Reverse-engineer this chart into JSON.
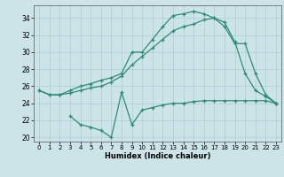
{
  "xlabel": "Humidex (Indice chaleur)",
  "xlim": [
    -0.5,
    23.5
  ],
  "ylim": [
    19.5,
    35.5
  ],
  "xticks": [
    0,
    1,
    2,
    3,
    4,
    5,
    6,
    7,
    8,
    9,
    10,
    11,
    12,
    13,
    14,
    15,
    16,
    17,
    18,
    19,
    20,
    21,
    22,
    23
  ],
  "yticks": [
    20,
    22,
    24,
    26,
    28,
    30,
    32,
    34
  ],
  "line_color": "#2e8b72",
  "bg_color": "#cce4e8",
  "grid_color": "#aaccd4",
  "line1_x": [
    0,
    1,
    2,
    3,
    4,
    5,
    6,
    7,
    8,
    9,
    10,
    11,
    12,
    13,
    14,
    15,
    16,
    17,
    18,
    19,
    20,
    21,
    22,
    23
  ],
  "line1_y": [
    25.5,
    25.0,
    25.0,
    25.5,
    26.0,
    26.3,
    26.7,
    27.0,
    27.5,
    30.0,
    30.0,
    31.5,
    33.0,
    34.3,
    34.5,
    34.8,
    34.5,
    34.0,
    33.5,
    31.2,
    27.5,
    25.5,
    24.8,
    24.0
  ],
  "line2_x": [
    0,
    1,
    2,
    3,
    4,
    5,
    6,
    7,
    8,
    9,
    10,
    11,
    12,
    13,
    14,
    15,
    16,
    17,
    18,
    19,
    20,
    21,
    22,
    23
  ],
  "line2_y": [
    25.5,
    25.0,
    25.0,
    25.2,
    25.5,
    25.8,
    26.0,
    26.5,
    27.2,
    28.5,
    29.5,
    30.5,
    31.5,
    32.5,
    33.0,
    33.3,
    33.8,
    34.0,
    33.0,
    31.0,
    31.0,
    27.5,
    25.0,
    24.0
  ],
  "line3_x": [
    3,
    4,
    5,
    6,
    7,
    8,
    9,
    10,
    11,
    12,
    13,
    14,
    15,
    16,
    17,
    18,
    19,
    20,
    21,
    22,
    23
  ],
  "line3_y": [
    22.5,
    21.5,
    21.2,
    20.8,
    20.0,
    25.3,
    21.5,
    23.2,
    23.5,
    23.8,
    24.0,
    24.0,
    24.2,
    24.3,
    24.3,
    24.3,
    24.3,
    24.3,
    24.3,
    24.3,
    24.0
  ]
}
